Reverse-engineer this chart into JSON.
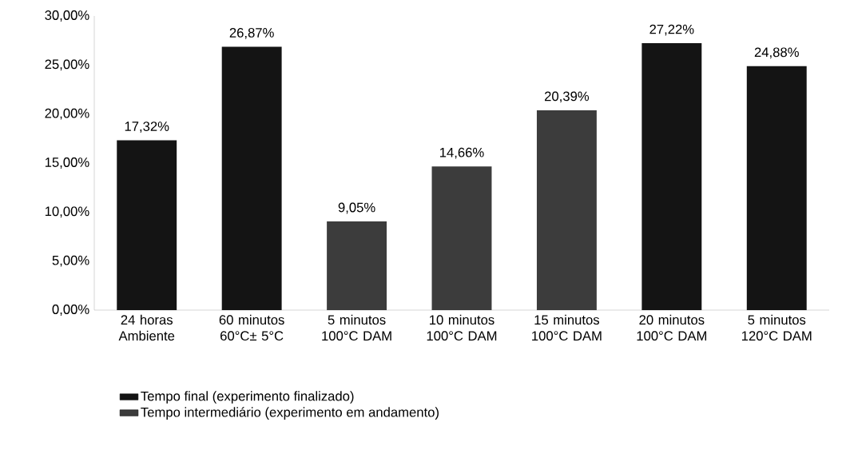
{
  "chart_data": {
    "type": "bar",
    "categories": [
      "24 horas Ambiente",
      "60 minutos 60°C± 5°C",
      "5 minutos 100°C DAM",
      "10 minutos 100°C DAM",
      "15 minutos 100°C DAM",
      "20 minutos 100°C DAM",
      "5 minutos 120°C DAM"
    ],
    "series": [
      {
        "name": "Tempo final (experimento finalizado)",
        "color": "#141414",
        "values": [
          17.32,
          26.87,
          null,
          null,
          null,
          27.22,
          24.88
        ],
        "value_labels": [
          "17,32%",
          "26,87%",
          null,
          null,
          null,
          "27,22%",
          "24,88%"
        ]
      },
      {
        "name": "Tempo intermediário (experimento em andamento)",
        "color": "#3c3c3c",
        "values": [
          null,
          null,
          9.05,
          14.66,
          20.39,
          null,
          null
        ],
        "value_labels": [
          null,
          null,
          "9,05%",
          "14,66%",
          "20,39%",
          null,
          null
        ]
      }
    ],
    "ylim": [
      0,
      30
    ],
    "yticks": [
      {
        "value": 0,
        "label": "0,00%"
      },
      {
        "value": 5,
        "label": "5,00%"
      },
      {
        "value": 10,
        "label": "10,00%"
      },
      {
        "value": 15,
        "label": "15,00%"
      },
      {
        "value": 20,
        "label": "20,00%"
      },
      {
        "value": 25,
        "label": "25,00%"
      },
      {
        "value": 30,
        "label": "30,00%"
      }
    ],
    "legend": "bottom"
  }
}
